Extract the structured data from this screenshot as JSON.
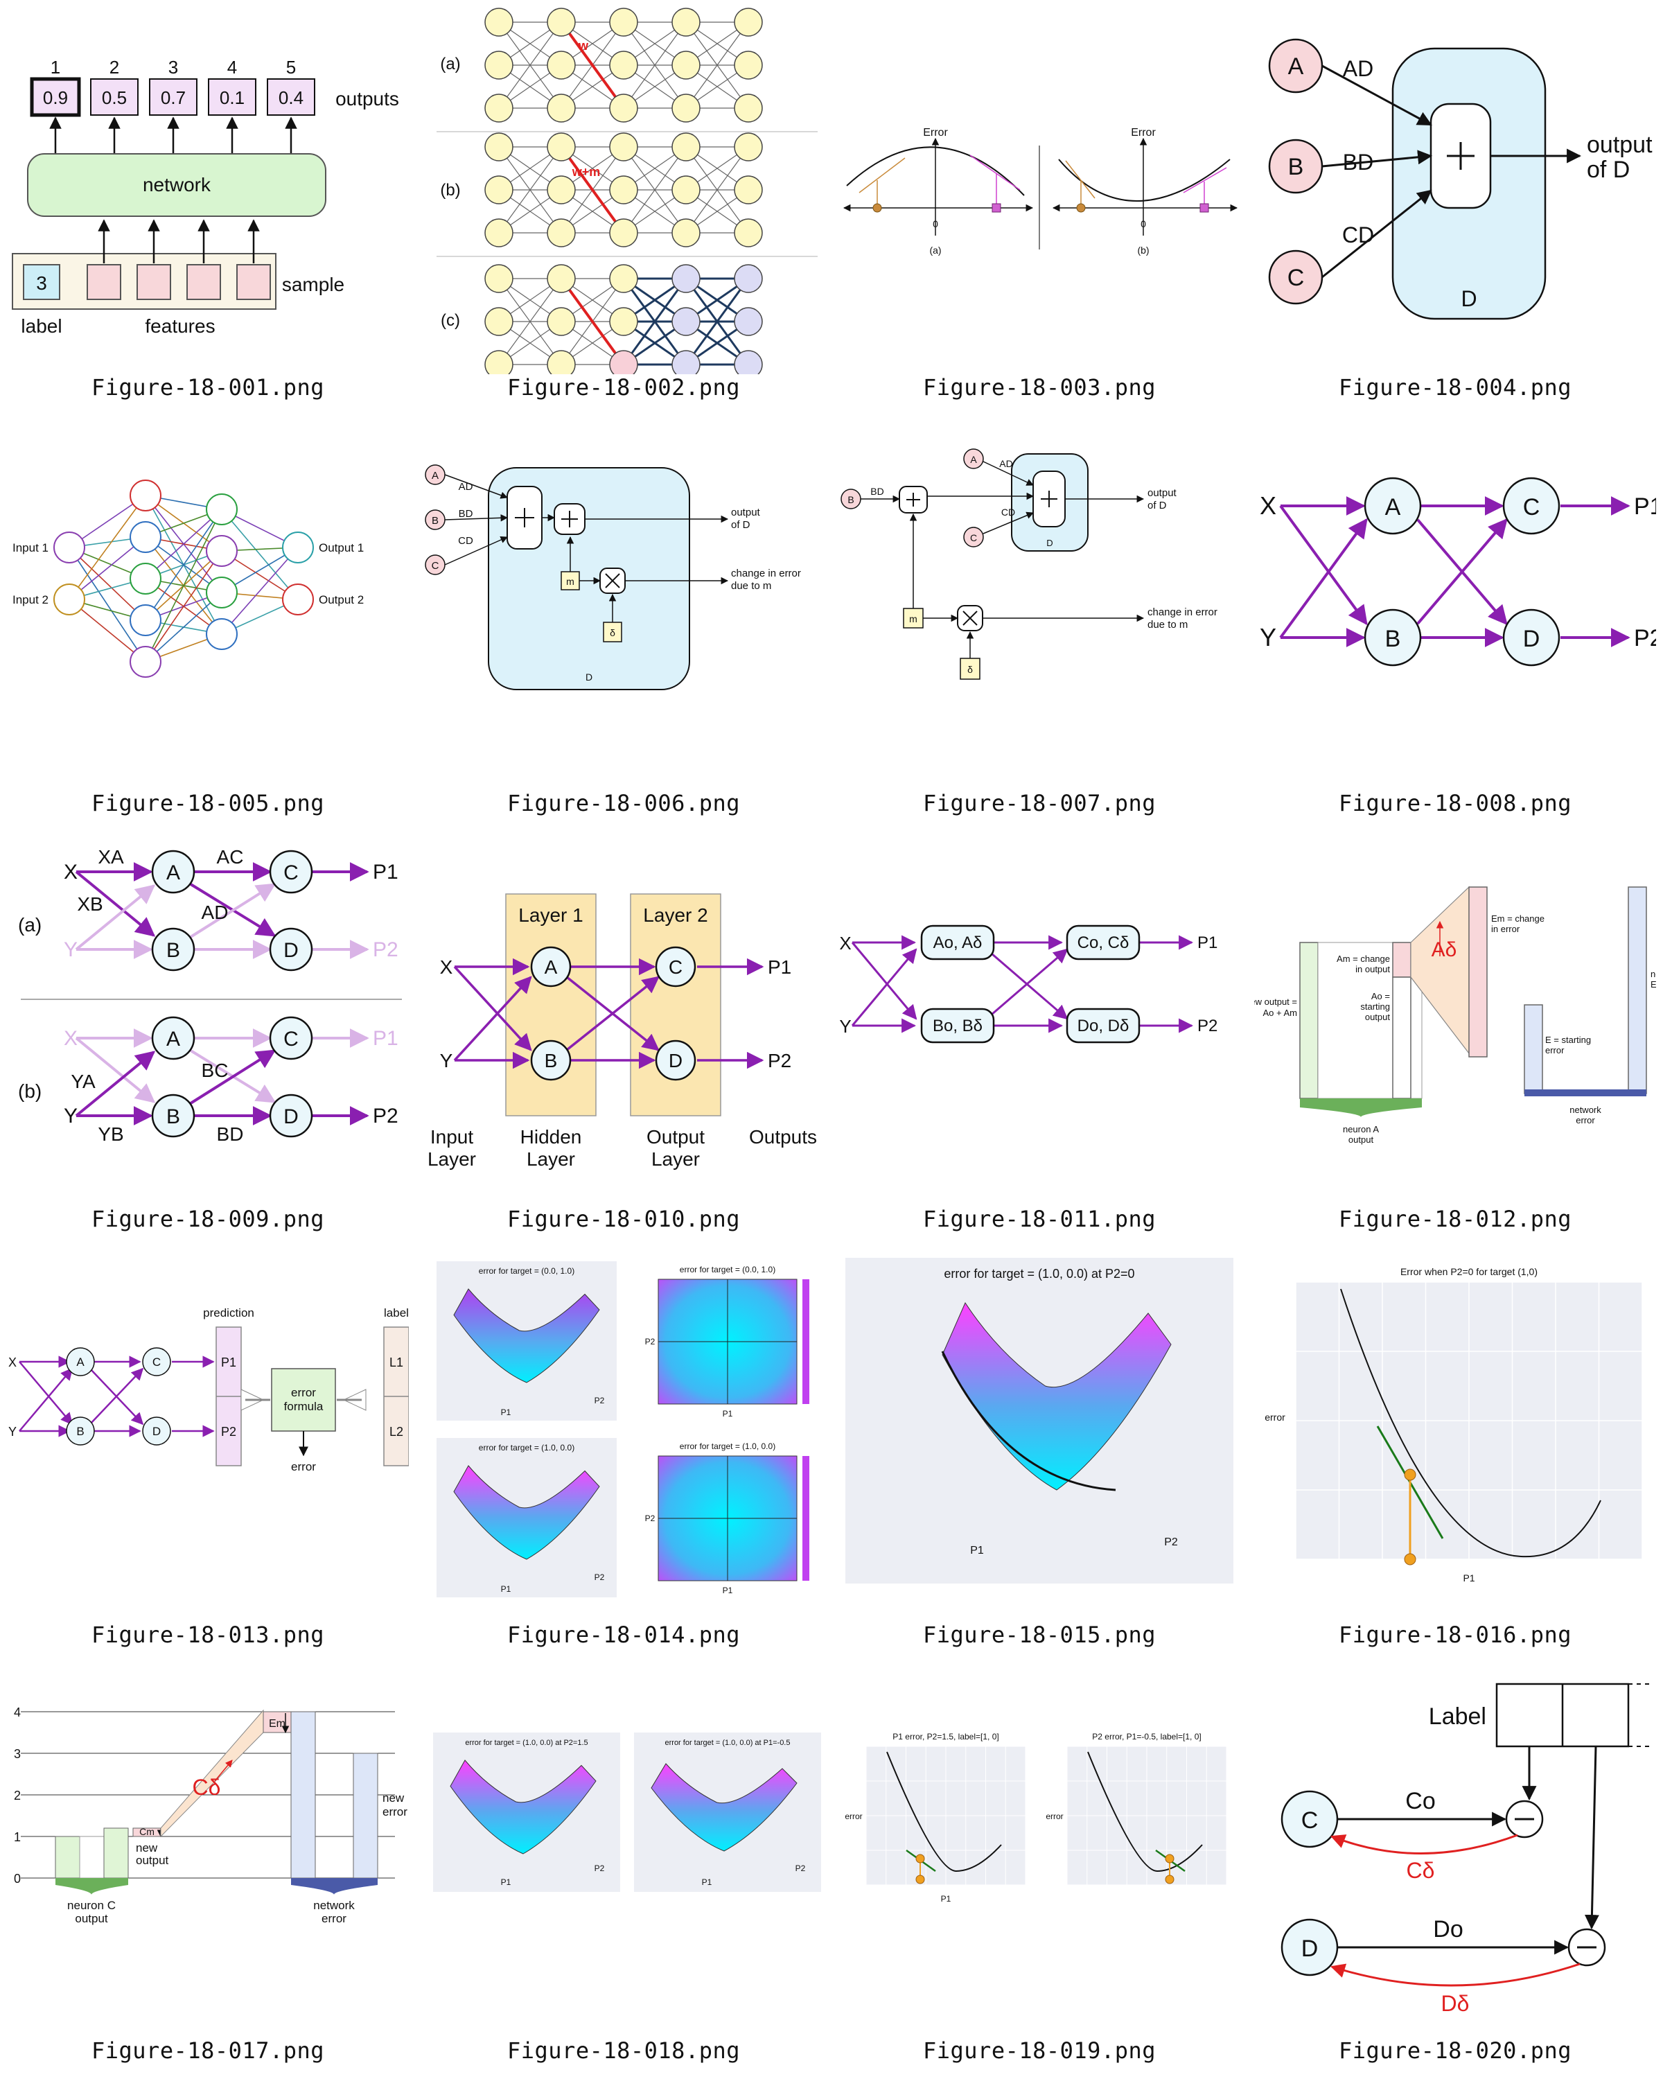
{
  "gallery": {
    "items": [
      {
        "filename": "Figure-18-001.png",
        "labels": [
          "1",
          "2",
          "3",
          "4",
          "5",
          "0.9",
          "0.5",
          "0.7",
          "0.1",
          "0.4",
          "outputs",
          "network",
          "3",
          "sample",
          "label",
          "features"
        ]
      },
      {
        "filename": "Figure-18-002.png",
        "labels": [
          "(a)",
          "(b)",
          "(c)",
          "w",
          "w+m"
        ]
      },
      {
        "filename": "Figure-18-003.png",
        "labels": [
          "Error",
          "Error",
          "0",
          "0",
          "(a)",
          "(b)"
        ]
      },
      {
        "filename": "Figure-18-004.png",
        "labels": [
          "A",
          "B",
          "C",
          "AD",
          "BD",
          "CD",
          "D",
          "output",
          "of D"
        ]
      },
      {
        "filename": "Figure-18-005.png",
        "labels": [
          "Input 1",
          "Input 2",
          "Output 1",
          "Output 2"
        ]
      },
      {
        "filename": "Figure-18-006.png",
        "labels": [
          "A",
          "B",
          "C",
          "AD",
          "BD",
          "CD",
          "m",
          "δ",
          "D",
          "output",
          "of D",
          "change in error",
          "due to m"
        ]
      },
      {
        "filename": "Figure-18-007.png",
        "labels": [
          "A",
          "B",
          "C",
          "AD",
          "BD",
          "CD",
          "D",
          "m",
          "δ",
          "output",
          "of D",
          "change in error",
          "due to m"
        ]
      },
      {
        "filename": "Figure-18-008.png",
        "labels": [
          "X",
          "Y",
          "A",
          "B",
          "C",
          "D",
          "P1",
          "P2"
        ]
      },
      {
        "filename": "Figure-18-009.png",
        "labels": [
          "X",
          "XA",
          "XB",
          "Y",
          "A",
          "B",
          "C",
          "D",
          "AC",
          "AD",
          "P1",
          "P2",
          "(a)",
          "X",
          "Y",
          "YA",
          "YB",
          "BC",
          "BD",
          "P1",
          "P2",
          "(b)"
        ]
      },
      {
        "filename": "Figure-18-010.png",
        "labels": [
          "Layer 1",
          "Layer 2",
          "X",
          "Y",
          "A",
          "B",
          "C",
          "D",
          "P1",
          "P2",
          "Input",
          "Layer",
          "Hidden",
          "Layer",
          "Output",
          "Layer",
          "Outputs"
        ]
      },
      {
        "filename": "Figure-18-011.png",
        "labels": [
          "X",
          "Y",
          "Ao, Aδ",
          "Bo, Bδ",
          "Co, Cδ",
          "Do, Dδ",
          "P1",
          "P2"
        ]
      },
      {
        "filename": "Figure-18-012.png",
        "labels": [
          "new output =",
          "Ao + Am",
          "Am = change",
          "in output",
          "Ao =",
          "starting",
          "output",
          "Aδ",
          "Em = change",
          "in error",
          "E = starting",
          "error",
          "new error =",
          "E + Em",
          "neuron A",
          "output",
          "network",
          "error"
        ]
      },
      {
        "filename": "Figure-18-013.png",
        "labels": [
          "X",
          "Y",
          "A",
          "B",
          "C",
          "D",
          "prediction",
          "P1",
          "P2",
          "error",
          "formula",
          "label",
          "L1",
          "L2",
          "error"
        ]
      },
      {
        "filename": "Figure-18-014.png",
        "labels": [
          "error for target = (0.0, 1.0)",
          "error for target = (0.0, 1.0)",
          "error for target = (1.0, 0.0)",
          "error for target = (1.0, 0.0)",
          "P1",
          "P2"
        ]
      },
      {
        "filename": "Figure-18-015.png",
        "labels": [
          "error for target = (1.0, 0.0) at P2=0",
          "P1",
          "P2"
        ]
      },
      {
        "filename": "Figure-18-016.png",
        "labels": [
          "Error when P2=0 for target (1,0)",
          "error",
          "P1"
        ]
      },
      {
        "filename": "Figure-18-017.png",
        "labels": [
          "4",
          "3",
          "2",
          "1",
          "0",
          "Cm",
          "new",
          "output",
          "Cδ",
          "Em",
          "new",
          "error",
          "neuron C",
          "output",
          "network",
          "error"
        ]
      },
      {
        "filename": "Figure-18-018.png",
        "labels": [
          "error for target = (1.0, 0.0) at P2=1.5",
          "error for target = (1.0, 0.0) at P1=-0.5",
          "P1",
          "P2"
        ]
      },
      {
        "filename": "Figure-18-019.png",
        "labels": [
          "P1 error, P2=1.5, label=[1, 0]",
          "P2 error, P1=-0.5, label=[1, 0]",
          "error",
          "P1"
        ]
      },
      {
        "filename": "Figure-18-020.png",
        "labels": [
          "Label",
          "C",
          "Co",
          "Cδ",
          "D",
          "Do",
          "Dδ"
        ]
      }
    ]
  },
  "colors": {
    "purple": "#8a1fb0",
    "light_purple": "#d9b3e6",
    "node_fill": "#eaf7fb",
    "pink_fill": "#f8d7da",
    "yellow_fill": "#fff9c9",
    "blue_box": "#dcf2fa",
    "green_box": "#d8f5d0",
    "layer_band": "#fbe6b0",
    "red": "#e02020",
    "navy": "#1e3a5f"
  }
}
